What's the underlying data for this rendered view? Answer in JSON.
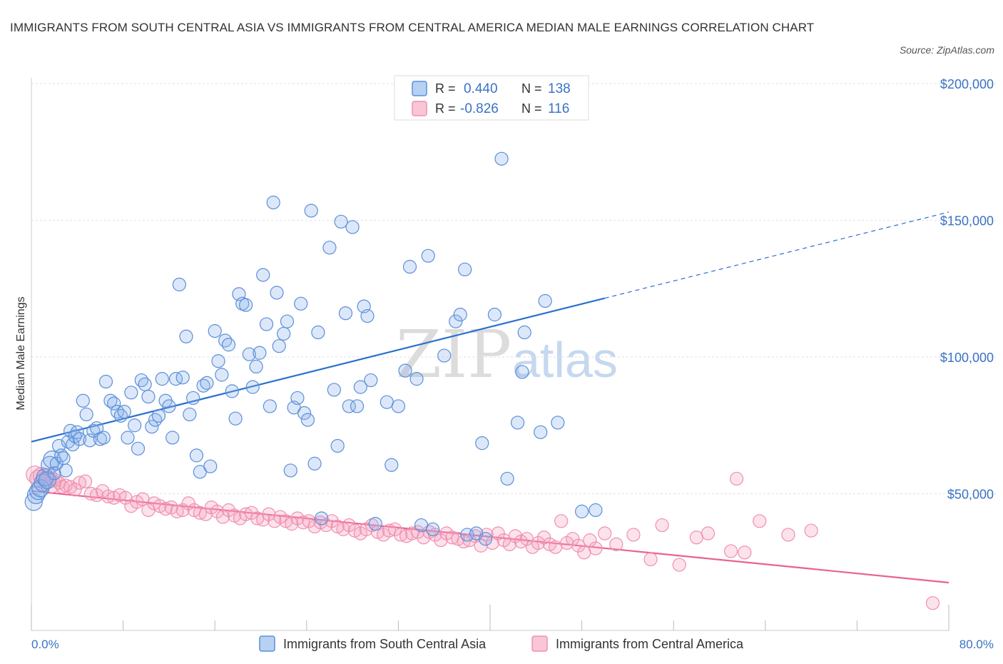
{
  "title": "IMMIGRANTS FROM SOUTH CENTRAL ASIA VS IMMIGRANTS FROM CENTRAL AMERICA MEDIAN MALE EARNINGS CORRELATION CHART",
  "source": "Source: ZipAtlas.com",
  "watermark": {
    "zip": "ZIP",
    "atlas": "atlas"
  },
  "legend": {
    "r_label": "R =",
    "n_label": "N =",
    "entries": [
      {
        "r": "0.440",
        "n": "138"
      },
      {
        "r": "-0.826",
        "n": "116"
      }
    ]
  },
  "chart_data": {
    "type": "scatter",
    "xlabel": "",
    "ylabel": "Median Male Earnings",
    "xlim": [
      0,
      80
    ],
    "ylim": [
      0,
      200000
    ],
    "x_tick_labels": [
      "0.0%",
      "80.0%"
    ],
    "y_ticks": [
      50000,
      100000,
      150000,
      200000
    ],
    "y_tick_labels": [
      "$50,000",
      "$100,000",
      "$150,000",
      "$200,000"
    ],
    "grid": "horizontal dashed",
    "colors": {
      "blue": "#5b8fd9",
      "blue_line": "#2a6fcf",
      "pink": "#f08fb0",
      "pink_line": "#e8638e"
    },
    "series": [
      {
        "name": "Immigrants from South Central Asia",
        "color": "#5b8fd9",
        "trend": {
          "x0": 0,
          "y0": 69000,
          "x1": 50,
          "y1": 121500,
          "dash_to_x": 80,
          "dash_to_y": 153000
        },
        "points": [
          [
            0.2,
            47000
          ],
          [
            0.4,
            49500
          ],
          [
            0.6,
            51000
          ],
          [
            0.8,
            52000
          ],
          [
            1.0,
            54000
          ],
          [
            1.2,
            56000
          ],
          [
            1.4,
            55000
          ],
          [
            1.6,
            60500
          ],
          [
            1.8,
            62500
          ],
          [
            2.0,
            57500
          ],
          [
            2.2,
            61000
          ],
          [
            2.4,
            67500
          ],
          [
            2.6,
            64000
          ],
          [
            2.8,
            63000
          ],
          [
            3.0,
            58500
          ],
          [
            3.2,
            69000
          ],
          [
            3.4,
            73000
          ],
          [
            3.6,
            68000
          ],
          [
            3.8,
            71000
          ],
          [
            4.0,
            72500
          ],
          [
            4.2,
            70000
          ],
          [
            4.5,
            84000
          ],
          [
            4.8,
            79000
          ],
          [
            5.1,
            69500
          ],
          [
            5.4,
            73000
          ],
          [
            5.7,
            74000
          ],
          [
            6.0,
            70000
          ],
          [
            6.3,
            70500
          ],
          [
            6.5,
            91000
          ],
          [
            6.9,
            84000
          ],
          [
            7.2,
            83000
          ],
          [
            7.5,
            80000
          ],
          [
            7.8,
            78500
          ],
          [
            8.1,
            80000
          ],
          [
            8.4,
            70500
          ],
          [
            8.7,
            87000
          ],
          [
            9.0,
            75000
          ],
          [
            9.3,
            66500
          ],
          [
            9.6,
            91500
          ],
          [
            9.9,
            90000
          ],
          [
            10.2,
            85500
          ],
          [
            10.5,
            74500
          ],
          [
            10.8,
            77000
          ],
          [
            11.1,
            78500
          ],
          [
            11.4,
            92000
          ],
          [
            11.7,
            84000
          ],
          [
            12.0,
            82000
          ],
          [
            12.3,
            70500
          ],
          [
            12.6,
            92000
          ],
          [
            12.9,
            126500
          ],
          [
            13.2,
            92500
          ],
          [
            13.5,
            107500
          ],
          [
            13.8,
            79000
          ],
          [
            14.1,
            85000
          ],
          [
            14.4,
            64000
          ],
          [
            14.7,
            58000
          ],
          [
            15.0,
            89500
          ],
          [
            15.3,
            90500
          ],
          [
            15.6,
            60000
          ],
          [
            16.0,
            109500
          ],
          [
            16.3,
            98500
          ],
          [
            16.6,
            93500
          ],
          [
            16.9,
            106000
          ],
          [
            17.2,
            104500
          ],
          [
            17.5,
            87500
          ],
          [
            17.8,
            77500
          ],
          [
            18.1,
            123000
          ],
          [
            18.4,
            119500
          ],
          [
            18.7,
            119000
          ],
          [
            19.0,
            101000
          ],
          [
            19.3,
            89000
          ],
          [
            19.6,
            96500
          ],
          [
            19.9,
            101500
          ],
          [
            20.2,
            130000
          ],
          [
            20.5,
            112000
          ],
          [
            20.8,
            82000
          ],
          [
            21.1,
            156500
          ],
          [
            21.4,
            123500
          ],
          [
            21.6,
            104000
          ],
          [
            22.0,
            108500
          ],
          [
            22.3,
            113000
          ],
          [
            22.6,
            58500
          ],
          [
            22.9,
            81500
          ],
          [
            23.2,
            85000
          ],
          [
            23.5,
            119500
          ],
          [
            23.8,
            79500
          ],
          [
            24.1,
            77000
          ],
          [
            24.4,
            153500
          ],
          [
            24.7,
            61000
          ],
          [
            25.0,
            109000
          ],
          [
            25.3,
            41000
          ],
          [
            26.0,
            140000
          ],
          [
            26.4,
            88000
          ],
          [
            26.7,
            67500
          ],
          [
            27.0,
            149500
          ],
          [
            27.4,
            116000
          ],
          [
            27.7,
            82000
          ],
          [
            28.0,
            147500
          ],
          [
            28.4,
            82000
          ],
          [
            28.7,
            89000
          ],
          [
            29.0,
            118500
          ],
          [
            29.3,
            115000
          ],
          [
            29.6,
            91500
          ],
          [
            30.0,
            39000
          ],
          [
            31.0,
            83500
          ],
          [
            31.4,
            60500
          ],
          [
            32.0,
            82000
          ],
          [
            32.6,
            95000
          ],
          [
            33.0,
            133000
          ],
          [
            33.6,
            92000
          ],
          [
            34.0,
            38500
          ],
          [
            34.6,
            137000
          ],
          [
            35.0,
            37000
          ],
          [
            36.0,
            100500
          ],
          [
            37.0,
            113000
          ],
          [
            37.4,
            115500
          ],
          [
            37.8,
            132000
          ],
          [
            38.0,
            35000
          ],
          [
            38.8,
            35500
          ],
          [
            39.3,
            68500
          ],
          [
            39.6,
            33500
          ],
          [
            40.4,
            115500
          ],
          [
            41.0,
            172500
          ],
          [
            41.5,
            55500
          ],
          [
            42.4,
            76000
          ],
          [
            42.8,
            94500
          ],
          [
            43.0,
            109000
          ],
          [
            44.4,
            72500
          ],
          [
            44.8,
            120500
          ],
          [
            45.9,
            76000
          ],
          [
            48.0,
            43500
          ],
          [
            49.2,
            44000
          ]
        ]
      },
      {
        "name": "Immigrants from Central America",
        "color": "#f08fb0",
        "trend": {
          "x0": 0,
          "y0": 51000,
          "x1": 80,
          "y1": 17500
        },
        "points": [
          [
            0.3,
            57000
          ],
          [
            0.6,
            55500
          ],
          [
            0.9,
            56500
          ],
          [
            1.2,
            55000
          ],
          [
            1.5,
            56000
          ],
          [
            1.8,
            53500
          ],
          [
            2.1,
            55000
          ],
          [
            2.4,
            54000
          ],
          [
            2.7,
            52500
          ],
          [
            3.0,
            53000
          ],
          [
            3.4,
            52500
          ],
          [
            3.8,
            51500
          ],
          [
            4.2,
            54000
          ],
          [
            4.7,
            54500
          ],
          [
            5.2,
            50000
          ],
          [
            5.7,
            49500
          ],
          [
            6.2,
            51000
          ],
          [
            6.7,
            49000
          ],
          [
            7.2,
            48500
          ],
          [
            7.7,
            49500
          ],
          [
            8.2,
            48500
          ],
          [
            8.7,
            45500
          ],
          [
            9.2,
            47000
          ],
          [
            9.7,
            48000
          ],
          [
            10.2,
            44000
          ],
          [
            10.7,
            46500
          ],
          [
            11.2,
            45500
          ],
          [
            11.7,
            44500
          ],
          [
            12.2,
            45000
          ],
          [
            12.7,
            43500
          ],
          [
            13.2,
            44000
          ],
          [
            13.7,
            46500
          ],
          [
            14.2,
            44000
          ],
          [
            14.7,
            43000
          ],
          [
            15.2,
            42500
          ],
          [
            15.7,
            45000
          ],
          [
            16.2,
            43500
          ],
          [
            16.7,
            41500
          ],
          [
            17.2,
            44000
          ],
          [
            17.7,
            42000
          ],
          [
            18.2,
            41000
          ],
          [
            18.7,
            42500
          ],
          [
            19.2,
            43000
          ],
          [
            19.7,
            41000
          ],
          [
            20.2,
            40500
          ],
          [
            20.7,
            42500
          ],
          [
            21.2,
            40000
          ],
          [
            21.7,
            41500
          ],
          [
            22.2,
            40000
          ],
          [
            22.7,
            39000
          ],
          [
            23.2,
            41000
          ],
          [
            23.7,
            39500
          ],
          [
            24.2,
            40000
          ],
          [
            24.7,
            38000
          ],
          [
            25.2,
            39500
          ],
          [
            25.7,
            38500
          ],
          [
            26.2,
            40000
          ],
          [
            26.7,
            38000
          ],
          [
            27.2,
            37000
          ],
          [
            27.7,
            38500
          ],
          [
            28.2,
            36500
          ],
          [
            28.7,
            35500
          ],
          [
            29.2,
            37000
          ],
          [
            29.7,
            38500
          ],
          [
            30.2,
            36000
          ],
          [
            30.7,
            35000
          ],
          [
            31.2,
            36500
          ],
          [
            31.7,
            37000
          ],
          [
            32.2,
            35000
          ],
          [
            32.7,
            34500
          ],
          [
            33.2,
            35500
          ],
          [
            33.7,
            36000
          ],
          [
            34.2,
            34000
          ],
          [
            34.7,
            36000
          ],
          [
            35.2,
            35000
          ],
          [
            35.7,
            33000
          ],
          [
            36.2,
            35500
          ],
          [
            36.7,
            34000
          ],
          [
            37.2,
            33500
          ],
          [
            37.7,
            32500
          ],
          [
            38.2,
            33000
          ],
          [
            38.7,
            34500
          ],
          [
            39.2,
            31000
          ],
          [
            39.7,
            35000
          ],
          [
            40.2,
            32000
          ],
          [
            40.7,
            35500
          ],
          [
            41.2,
            33000
          ],
          [
            41.7,
            31500
          ],
          [
            42.2,
            34500
          ],
          [
            42.7,
            32500
          ],
          [
            43.2,
            33500
          ],
          [
            43.7,
            30500
          ],
          [
            44.2,
            32000
          ],
          [
            44.7,
            34000
          ],
          [
            45.2,
            31500
          ],
          [
            45.7,
            30500
          ],
          [
            46.2,
            40000
          ],
          [
            46.7,
            32000
          ],
          [
            47.2,
            33500
          ],
          [
            47.7,
            31000
          ],
          [
            48.2,
            28500
          ],
          [
            48.7,
            33000
          ],
          [
            49.2,
            30000
          ],
          [
            50.0,
            35500
          ],
          [
            51.0,
            31500
          ],
          [
            52.5,
            35000
          ],
          [
            54.0,
            26000
          ],
          [
            55.0,
            38500
          ],
          [
            56.5,
            24000
          ],
          [
            58.0,
            34000
          ],
          [
            59.0,
            35500
          ],
          [
            61.0,
            29000
          ],
          [
            61.5,
            55500
          ],
          [
            62.2,
            28500
          ],
          [
            63.5,
            40000
          ],
          [
            66.0,
            35000
          ],
          [
            68.0,
            36500
          ],
          [
            78.6,
            10000
          ]
        ]
      }
    ]
  },
  "bottom_legend": [
    {
      "label": "Immigrants from South Central Asia"
    },
    {
      "label": "Immigrants from Central America"
    }
  ]
}
